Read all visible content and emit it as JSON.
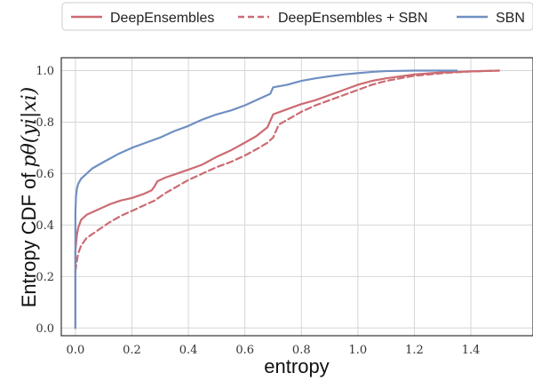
{
  "chart_data": {
    "type": "line",
    "xlabel": "entropy",
    "ylabel_prefix": "Entropy CDF of ",
    "ylabel_math": "pθ(yi|xi)",
    "xlim": [
      -0.05,
      1.62
    ],
    "ylim": [
      -0.03,
      1.05
    ],
    "x_ticks": [
      0.0,
      0.2,
      0.4,
      0.6,
      0.8,
      1.0,
      1.2,
      1.4
    ],
    "x_tick_labels": [
      "0.0",
      "0.2",
      "0.4",
      "0.6",
      "0.8",
      "1.0",
      "1.2",
      "1.4"
    ],
    "y_ticks": [
      0.0,
      0.2,
      0.4,
      0.6,
      0.8,
      1.0
    ],
    "y_tick_labels": [
      "0.0",
      "0.2",
      "0.4",
      "0.6",
      "0.8",
      "1.0"
    ],
    "grid": true,
    "legend_placement": "top, outside plot",
    "series": [
      {
        "name": "DeepEnsembles",
        "color": "#cc6b72",
        "dash": "solid",
        "points": [
          [
            0.0,
            0.0
          ],
          [
            0.0,
            0.3
          ],
          [
            0.005,
            0.36
          ],
          [
            0.01,
            0.39
          ],
          [
            0.02,
            0.42
          ],
          [
            0.04,
            0.44
          ],
          [
            0.08,
            0.46
          ],
          [
            0.12,
            0.48
          ],
          [
            0.16,
            0.495
          ],
          [
            0.2,
            0.505
          ],
          [
            0.24,
            0.52
          ],
          [
            0.27,
            0.535
          ],
          [
            0.28,
            0.55
          ],
          [
            0.29,
            0.57
          ],
          [
            0.32,
            0.585
          ],
          [
            0.36,
            0.6
          ],
          [
            0.4,
            0.615
          ],
          [
            0.45,
            0.635
          ],
          [
            0.5,
            0.665
          ],
          [
            0.55,
            0.69
          ],
          [
            0.6,
            0.72
          ],
          [
            0.64,
            0.745
          ],
          [
            0.68,
            0.78
          ],
          [
            0.7,
            0.83
          ],
          [
            0.75,
            0.85
          ],
          [
            0.8,
            0.87
          ],
          [
            0.85,
            0.885
          ],
          [
            0.9,
            0.905
          ],
          [
            0.95,
            0.925
          ],
          [
            1.0,
            0.945
          ],
          [
            1.05,
            0.96
          ],
          [
            1.1,
            0.97
          ],
          [
            1.2,
            0.985
          ],
          [
            1.3,
            0.993
          ],
          [
            1.4,
            0.997
          ],
          [
            1.5,
            1.0
          ]
        ]
      },
      {
        "name": "DeepEnsembles + SBN",
        "color": "#cc6b72",
        "dash": "dashed",
        "points": [
          [
            0.0,
            0.22
          ],
          [
            0.005,
            0.26
          ],
          [
            0.01,
            0.29
          ],
          [
            0.02,
            0.32
          ],
          [
            0.04,
            0.35
          ],
          [
            0.08,
            0.38
          ],
          [
            0.12,
            0.41
          ],
          [
            0.16,
            0.435
          ],
          [
            0.2,
            0.455
          ],
          [
            0.24,
            0.475
          ],
          [
            0.28,
            0.495
          ],
          [
            0.32,
            0.525
          ],
          [
            0.36,
            0.55
          ],
          [
            0.4,
            0.575
          ],
          [
            0.45,
            0.6
          ],
          [
            0.5,
            0.625
          ],
          [
            0.55,
            0.645
          ],
          [
            0.6,
            0.67
          ],
          [
            0.65,
            0.7
          ],
          [
            0.68,
            0.72
          ],
          [
            0.7,
            0.74
          ],
          [
            0.72,
            0.79
          ],
          [
            0.76,
            0.815
          ],
          [
            0.8,
            0.84
          ],
          [
            0.85,
            0.865
          ],
          [
            0.9,
            0.885
          ],
          [
            0.95,
            0.905
          ],
          [
            1.0,
            0.925
          ],
          [
            1.05,
            0.945
          ],
          [
            1.1,
            0.96
          ],
          [
            1.2,
            0.98
          ],
          [
            1.3,
            0.99
          ],
          [
            1.4,
            0.997
          ],
          [
            1.5,
            1.0
          ]
        ]
      },
      {
        "name": "SBN",
        "color": "#6f8fc2",
        "dash": "solid",
        "points": [
          [
            0.0,
            0.0
          ],
          [
            0.0,
            0.45
          ],
          [
            0.002,
            0.51
          ],
          [
            0.005,
            0.54
          ],
          [
            0.01,
            0.56
          ],
          [
            0.02,
            0.58
          ],
          [
            0.04,
            0.6
          ],
          [
            0.06,
            0.62
          ],
          [
            0.1,
            0.645
          ],
          [
            0.15,
            0.675
          ],
          [
            0.2,
            0.7
          ],
          [
            0.25,
            0.72
          ],
          [
            0.3,
            0.74
          ],
          [
            0.35,
            0.765
          ],
          [
            0.4,
            0.785
          ],
          [
            0.45,
            0.81
          ],
          [
            0.5,
            0.83
          ],
          [
            0.55,
            0.845
          ],
          [
            0.6,
            0.865
          ],
          [
            0.65,
            0.89
          ],
          [
            0.69,
            0.91
          ],
          [
            0.7,
            0.935
          ],
          [
            0.75,
            0.945
          ],
          [
            0.8,
            0.96
          ],
          [
            0.85,
            0.97
          ],
          [
            0.9,
            0.978
          ],
          [
            0.95,
            0.985
          ],
          [
            1.0,
            0.99
          ],
          [
            1.05,
            0.995
          ],
          [
            1.1,
            0.998
          ],
          [
            1.2,
            1.0
          ],
          [
            1.35,
            1.0
          ]
        ]
      }
    ]
  }
}
